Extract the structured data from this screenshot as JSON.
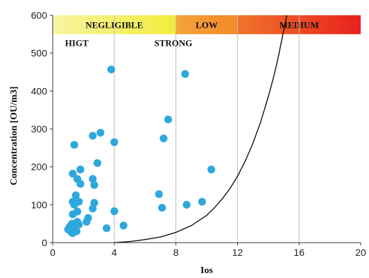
{
  "chart_data": {
    "type": "scatter",
    "xlabel": "Ios",
    "ylabel": "Concentration  [OU/m3]",
    "xlim": [
      0,
      20
    ],
    "ylim": [
      0,
      600
    ],
    "xticks": [
      0,
      4,
      8,
      12,
      16,
      20
    ],
    "yticks": [
      0,
      100,
      200,
      300,
      400,
      500,
      600
    ],
    "vertical_gridlines_at": [
      4,
      8,
      12,
      16
    ],
    "colors": {
      "points": "#2ea8dc",
      "curve": "#111111",
      "gridline": "#bdbdbd"
    },
    "bands": [
      {
        "label": "NEGLIGIBLE",
        "x_start": 0,
        "x_end": 8,
        "y_start": 550,
        "y_end": 600,
        "color_start": "#f7f5a3",
        "color_end": "#f2ec3c"
      },
      {
        "label": "LOW",
        "x_start": 8,
        "x_end": 12,
        "y_start": 550,
        "y_end": 600,
        "color_start": "#f6a23a",
        "color_end": "#f28a2a"
      },
      {
        "label": "MEDIUM",
        "x_start": 12,
        "x_end": 20,
        "y_start": 550,
        "y_end": 600,
        "color_start": "#f0752a",
        "color_end": "#e8201e"
      }
    ],
    "annotations": [
      {
        "text": "HIGT",
        "x": 0.8,
        "y": 528
      },
      {
        "text": "STRONG",
        "x": 6.6,
        "y": 528
      }
    ],
    "series": [
      {
        "type": "scatter",
        "points": [
          [
            1.0,
            35
          ],
          [
            1.1,
            42
          ],
          [
            1.2,
            28
          ],
          [
            1.25,
            50
          ],
          [
            1.3,
            25
          ],
          [
            1.4,
            38
          ],
          [
            1.5,
            45
          ],
          [
            1.55,
            30
          ],
          [
            1.6,
            55
          ],
          [
            1.7,
            48
          ],
          [
            1.3,
            75
          ],
          [
            1.6,
            82
          ],
          [
            1.4,
            100
          ],
          [
            1.3,
            108
          ],
          [
            1.7,
            108
          ],
          [
            1.5,
            125
          ],
          [
            1.8,
            155
          ],
          [
            1.6,
            168
          ],
          [
            1.3,
            182
          ],
          [
            1.8,
            193
          ],
          [
            1.4,
            258
          ],
          [
            2.2,
            55
          ],
          [
            2.3,
            65
          ],
          [
            2.6,
            90
          ],
          [
            2.7,
            105
          ],
          [
            2.7,
            152
          ],
          [
            2.6,
            168
          ],
          [
            2.9,
            210
          ],
          [
            2.6,
            282
          ],
          [
            3.1,
            290
          ],
          [
            3.5,
            38
          ],
          [
            3.8,
            457
          ],
          [
            4.0,
            83
          ],
          [
            4.0,
            265
          ],
          [
            4.6,
            45
          ],
          [
            6.9,
            128
          ],
          [
            7.1,
            92
          ],
          [
            7.2,
            275
          ],
          [
            7.5,
            325
          ],
          [
            8.6,
            445
          ],
          [
            8.7,
            100
          ],
          [
            9.7,
            108
          ],
          [
            10.3,
            193
          ]
        ]
      },
      {
        "type": "line",
        "points": [
          [
            4.0,
            0
          ],
          [
            5.0,
            3
          ],
          [
            6.0,
            8
          ],
          [
            7.0,
            15
          ],
          [
            8.0,
            27
          ],
          [
            9.0,
            45
          ],
          [
            10.0,
            72
          ],
          [
            10.5,
            92
          ],
          [
            11.0,
            115
          ],
          [
            11.5,
            142
          ],
          [
            12.0,
            175
          ],
          [
            12.5,
            215
          ],
          [
            13.0,
            262
          ],
          [
            13.5,
            318
          ],
          [
            14.0,
            385
          ],
          [
            14.3,
            430
          ],
          [
            14.6,
            480
          ],
          [
            14.9,
            540
          ],
          [
            15.2,
            600
          ]
        ]
      }
    ]
  }
}
